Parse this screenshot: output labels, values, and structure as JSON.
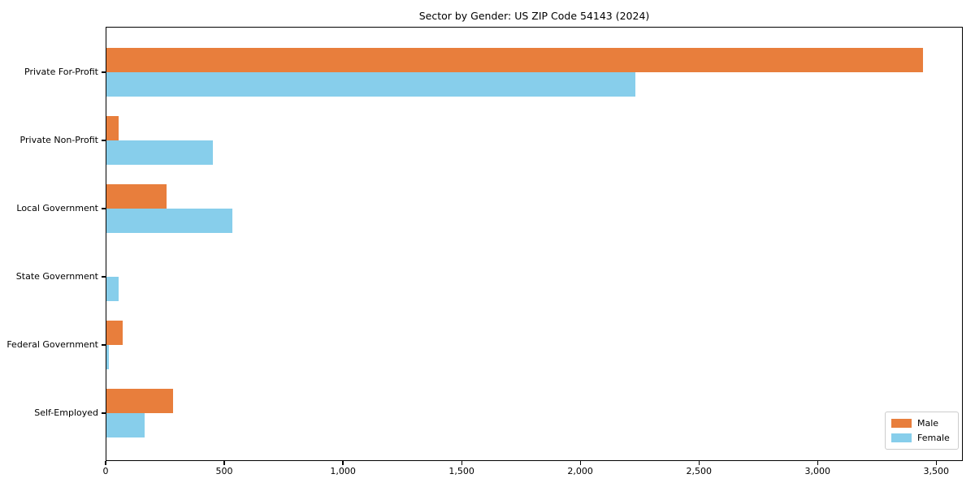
{
  "figure": {
    "background": "#ffffff"
  },
  "chart_data": {
    "type": "bar",
    "orientation": "horizontal",
    "title": "Sector by Gender: US ZIP Code 54143 (2024)",
    "categories": [
      "Private For-Profit",
      "Private Non-Profit",
      "Local Government",
      "State Government",
      "Federal Government",
      "Self-Employed"
    ],
    "series": [
      {
        "name": "Male",
        "color": "#e87e3c",
        "values": [
          3440,
          50,
          255,
          0,
          70,
          280
        ]
      },
      {
        "name": "Female",
        "color": "#87ceeb",
        "values": [
          2230,
          450,
          530,
          50,
          10,
          160
        ]
      }
    ],
    "xlabel": "",
    "ylabel": "",
    "xlim": [
      0,
      3612
    ],
    "xticks": [
      0,
      500,
      1000,
      1500,
      2000,
      2500,
      3000,
      3500
    ],
    "xtick_labels": [
      "0",
      "500",
      "1,000",
      "1,500",
      "2,000",
      "2,500",
      "3,000",
      "3,500"
    ],
    "grid": false,
    "legend": {
      "position": "lower-right",
      "entries": [
        "Male",
        "Female"
      ]
    }
  }
}
